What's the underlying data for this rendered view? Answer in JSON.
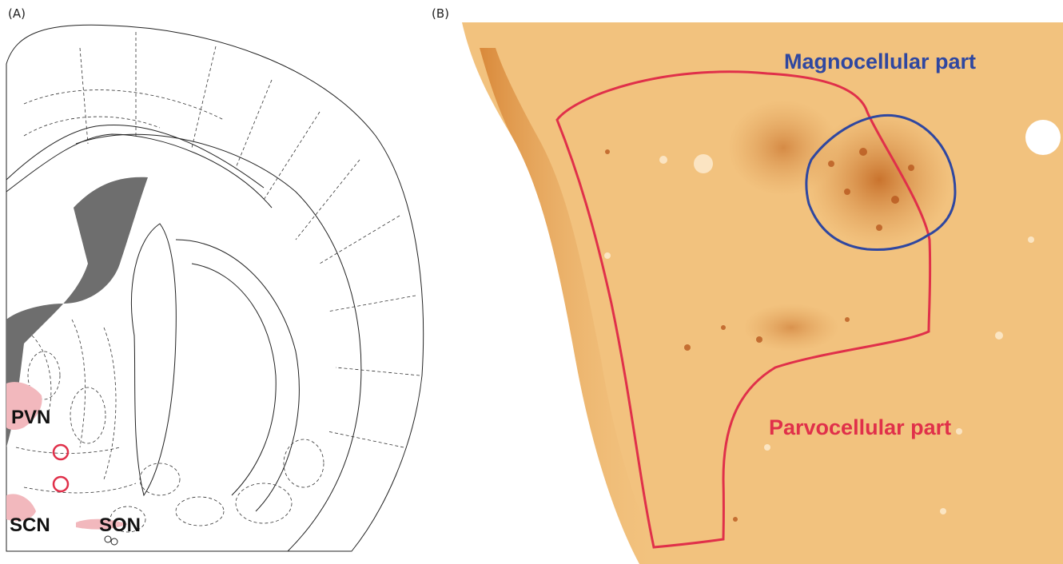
{
  "panel_a": {
    "label": "(A)",
    "regions": {
      "pvn": "PVN",
      "scn": "SCN",
      "son": "SON"
    }
  },
  "panel_b": {
    "label": "(B)",
    "magnocellular_label": "Magnocellular part",
    "parvocellular_label": "Parvocellular part"
  },
  "colors": {
    "highlight_fill": "#f2b8bd",
    "outline_red": "#e0304a",
    "outline_blue": "#2f47a0",
    "ventricle": "#6e6e6e",
    "tissue": "#f2c27e"
  },
  "icons": [
    "brain-section-diagram",
    "histology-micrograph"
  ]
}
